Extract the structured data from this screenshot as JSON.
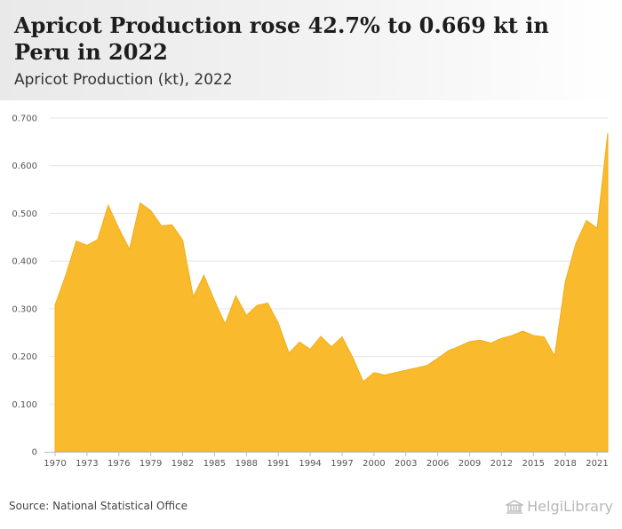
{
  "header": {
    "title": "Apricot Production rose 42.7% to 0.669 kt in Peru in 2022",
    "subtitle": "Apricot Production (kt), 2022"
  },
  "footer": {
    "source": "Source: National Statistical Office",
    "brand": "HelgiLibrary",
    "brand_icon": "library-building-icon"
  },
  "colors": {
    "area_fill": "#f9bb2d",
    "area_stroke": "#f1ad14",
    "grid": "#e4e4e4",
    "axis": "#bdbdbd"
  },
  "chart_data": {
    "type": "area",
    "title": "",
    "xlabel": "",
    "ylabel": "",
    "ylim": [
      0,
      0.7
    ],
    "xlim": [
      1970,
      2022
    ],
    "grid": true,
    "legend": "none",
    "y_ticks": [
      "0",
      "0.100",
      "0.200",
      "0.300",
      "0.400",
      "0.500",
      "0.600",
      "0.700"
    ],
    "x_ticks": [
      "1970",
      "1973",
      "1976",
      "1979",
      "1982",
      "1985",
      "1988",
      "1991",
      "1994",
      "1997",
      "2000",
      "2003",
      "2006",
      "2009",
      "2012",
      "2015",
      "2018",
      "2021"
    ],
    "x": [
      1970,
      1971,
      1972,
      1973,
      1974,
      1975,
      1976,
      1977,
      1978,
      1979,
      1980,
      1981,
      1982,
      1983,
      1984,
      1985,
      1986,
      1987,
      1988,
      1989,
      1990,
      1991,
      1992,
      1993,
      1994,
      1995,
      1996,
      1997,
      1998,
      1999,
      2000,
      2001,
      2002,
      2003,
      2004,
      2005,
      2006,
      2007,
      2008,
      2009,
      2010,
      2011,
      2012,
      2013,
      2014,
      2015,
      2016,
      2017,
      2018,
      2019,
      2020,
      2021,
      2022
    ],
    "series": [
      {
        "values": [
          0.308,
          0.37,
          0.442,
          0.433,
          0.445,
          0.517,
          0.468,
          0.425,
          0.522,
          0.506,
          0.474,
          0.476,
          0.444,
          0.325,
          0.37,
          0.317,
          0.268,
          0.327,
          0.286,
          0.307,
          0.312,
          0.27,
          0.207,
          0.23,
          0.215,
          0.242,
          0.22,
          0.241,
          0.198,
          0.147,
          0.166,
          0.161,
          0.166,
          0.171,
          0.176,
          0.181,
          0.196,
          0.212,
          0.221,
          0.231,
          0.234,
          0.228,
          0.238,
          0.244,
          0.253,
          0.244,
          0.241,
          0.201,
          0.356,
          0.437,
          0.485,
          0.469,
          0.669
        ]
      }
    ]
  }
}
